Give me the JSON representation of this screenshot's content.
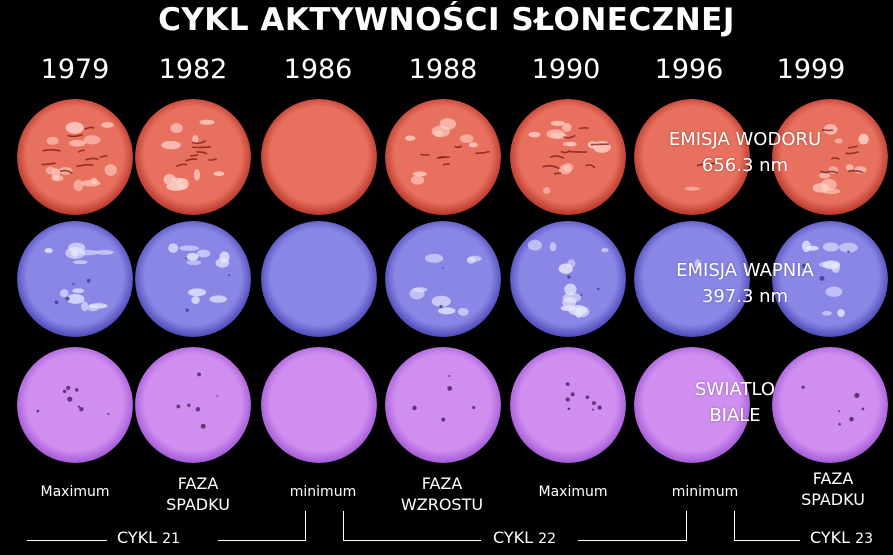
{
  "title": "CYKL AKTYWNOŚCI SŁONECZNEJ",
  "years": [
    "1979",
    "1982",
    "1986",
    "1988",
    "1990",
    "1996",
    "1999"
  ],
  "rows": [
    {
      "name": "hydrogen",
      "label_line1": "EMISJA WODORU",
      "label_line2": "656.3 nm",
      "base_color": "#e8705e",
      "rim_color": "#b8382c",
      "spot_color": "#7a1810",
      "bright_color": "#ffd2c8"
    },
    {
      "name": "calcium",
      "label_line1": "EMISJA WAPNIA",
      "label_line2": "397.3 nm",
      "base_color": "#8a86e6",
      "rim_color": "#4e4ab8",
      "spot_color": "#3a3690",
      "bright_color": "#e8e8ff"
    },
    {
      "name": "white-light",
      "label_line1": "SWIATLO",
      "label_line2": "BIALE",
      "base_color": "#cf8ef0",
      "rim_color": "#a45ad6",
      "spot_color": "#4a1a5a",
      "bright_color": "#f6e2ff"
    }
  ],
  "activity": [
    0.9,
    0.7,
    0.0,
    0.6,
    0.85,
    0.05,
    0.7
  ],
  "phases": [
    {
      "line1": "Maximum",
      "line2": ""
    },
    {
      "line1": "FAZA",
      "line2": "SPADKU"
    },
    {
      "line1": "minimum",
      "line2": ""
    },
    {
      "line1": "FAZA",
      "line2": "WZROSTU"
    },
    {
      "line1": "Maximum",
      "line2": ""
    },
    {
      "line1": "minimum",
      "line2": ""
    },
    {
      "line1": "FAZA",
      "line2": "SPADKU"
    }
  ],
  "cycles": [
    {
      "word": "CYKL",
      "number": "21"
    },
    {
      "word": "CYKL",
      "number": "22"
    },
    {
      "word": "CYKL",
      "number": "23"
    }
  ]
}
